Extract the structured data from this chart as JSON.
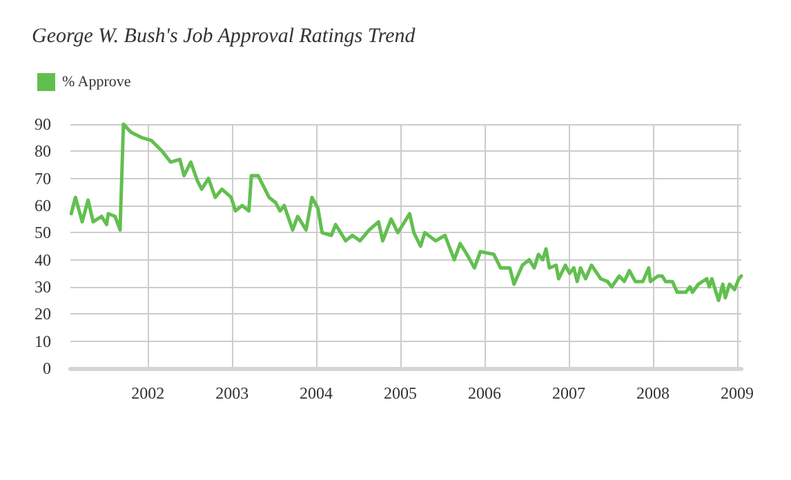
{
  "chart_data": {
    "type": "line",
    "title": "George W. Bush's Job Approval Ratings Trend",
    "legend": "top left",
    "grid": true,
    "marker": "none",
    "line_style": "solid",
    "xlim": [
      2001.08,
      2009.05
    ],
    "xticks": [
      2002,
      2003,
      2004,
      2005,
      2006,
      2007,
      2008,
      2009
    ],
    "ylim": [
      0,
      90
    ],
    "yticks": [
      0,
      10,
      20,
      30,
      40,
      50,
      60,
      70,
      80,
      90
    ],
    "series": [
      {
        "name": "% Approve",
        "color": "#62bf4f",
        "x": [
          2001.09,
          2001.14,
          2001.22,
          2001.29,
          2001.35,
          2001.45,
          2001.51,
          2001.53,
          2001.61,
          2001.67,
          2001.71,
          2001.8,
          2001.93,
          2002.04,
          2002.17,
          2002.27,
          2002.38,
          2002.43,
          2002.51,
          2002.59,
          2002.64,
          2002.72,
          2002.8,
          2002.88,
          2002.99,
          2003.04,
          2003.12,
          2003.2,
          2003.23,
          2003.31,
          2003.44,
          2003.52,
          2003.57,
          2003.62,
          2003.72,
          2003.78,
          2003.88,
          2003.95,
          2004.02,
          2004.07,
          2004.18,
          2004.23,
          2004.35,
          2004.43,
          2004.52,
          2004.63,
          2004.74,
          2004.79,
          2004.89,
          2004.97,
          2005.11,
          2005.16,
          2005.24,
          2005.29,
          2005.42,
          2005.53,
          2005.64,
          2005.71,
          2005.79,
          2005.88,
          2005.95,
          2006.11,
          2006.19,
          2006.3,
          2006.35,
          2006.45,
          2006.53,
          2006.59,
          2006.64,
          2006.69,
          2006.73,
          2006.77,
          2006.85,
          2006.88,
          2006.96,
          2007.01,
          2007.06,
          2007.1,
          2007.14,
          2007.2,
          2007.27,
          2007.38,
          2007.46,
          2007.51,
          2007.6,
          2007.66,
          2007.72,
          2007.79,
          2007.88,
          2007.95,
          2007.97,
          2008.06,
          2008.11,
          2008.15,
          2008.23,
          2008.29,
          2008.39,
          2008.44,
          2008.47,
          2008.54,
          2008.64,
          2008.67,
          2008.7,
          2008.78,
          2008.83,
          2008.86,
          2008.91,
          2008.97,
          2009.02,
          2009.05
        ],
        "values": [
          57,
          63,
          54,
          62,
          54,
          56,
          53,
          57,
          56,
          51,
          90,
          87,
          85,
          84,
          80,
          76,
          77,
          71,
          76,
          69,
          66,
          70,
          63,
          66,
          63,
          58,
          60,
          58,
          71,
          71,
          63,
          61,
          58,
          60,
          51,
          56,
          51,
          63,
          59,
          50,
          49,
          53,
          47,
          49,
          47,
          51,
          54,
          47,
          55,
          50,
          57,
          50,
          45,
          50,
          47,
          49,
          40,
          46,
          42,
          37,
          43,
          42,
          37,
          37,
          31,
          38,
          40,
          37,
          42,
          40,
          44,
          37,
          38,
          33,
          38,
          35,
          37,
          32,
          37,
          33,
          38,
          33,
          32,
          30,
          34,
          32,
          36,
          32,
          32,
          37,
          32,
          34,
          34,
          32,
          32,
          28,
          28,
          30,
          28,
          31,
          33,
          30,
          33,
          25,
          31,
          26,
          31,
          29,
          33,
          34
        ]
      }
    ]
  }
}
